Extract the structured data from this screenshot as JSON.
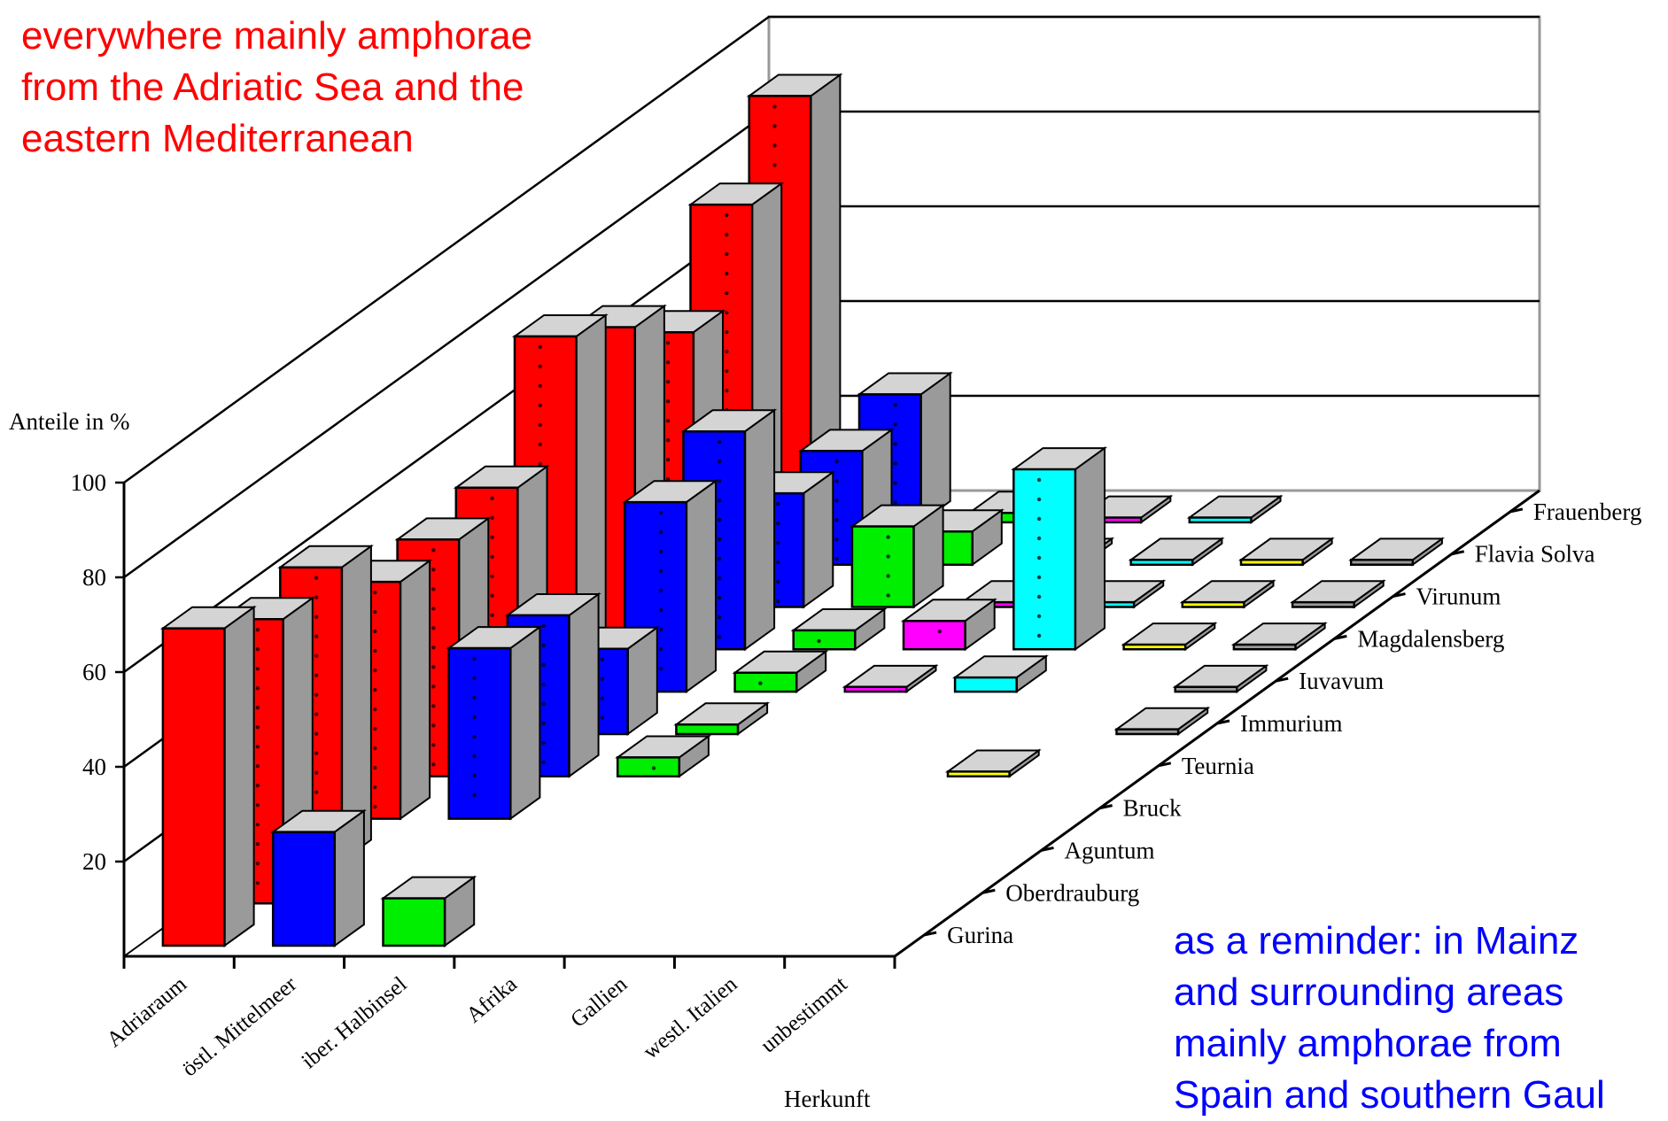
{
  "annotations": {
    "red_lines": [
      "everywhere mainly amphorae",
      "from the Adriatic Sea and the",
      "eastern Mediterranean"
    ],
    "red_color": "#ff0000",
    "blue_lines": [
      "as a reminder: in Mainz",
      "and surrounding areas",
      "mainly amphorae from",
      "Spain and southern Gaul"
    ],
    "blue_color": "#0000ff"
  },
  "chart_data": {
    "type": "bar",
    "subtype": "3d-grouped-bar",
    "title": "",
    "ylabel": "Anteile in %",
    "xlabel": "Herkunft",
    "ylim": [
      0,
      100
    ],
    "yticks": [
      20,
      40,
      60,
      80,
      100
    ],
    "grid": true,
    "categories": [
      "Adriaraum",
      "östl. Mittelmeer",
      "iber. Halbinsel",
      "Afrika",
      "Gallien",
      "westl. Italien",
      "unbestimmt"
    ],
    "category_colors": [
      "#ff0000",
      "#0000ff",
      "#00ee00",
      "#ff00ff",
      "#00ffff",
      "#ffff00",
      "#999999"
    ],
    "series": [
      {
        "name": "Gurina",
        "values": [
          67,
          24,
          10,
          0,
          0,
          0,
          0
        ]
      },
      {
        "name": "Oberdrauburg",
        "values": [
          60,
          0,
          0,
          0,
          0,
          0,
          0
        ]
      },
      {
        "name": "Aguntum",
        "values": [
          62,
          0,
          0,
          0,
          0,
          0,
          0
        ]
      },
      {
        "name": "Bruck",
        "values": [
          50,
          36,
          0,
          0,
          0,
          0,
          0
        ]
      },
      {
        "name": "Teurnia",
        "values": [
          50,
          34,
          4,
          0,
          0,
          1,
          0
        ]
      },
      {
        "name": "Immurium",
        "values": [
          52,
          18,
          2,
          0,
          0,
          0,
          1
        ]
      },
      {
        "name": "Iuvavum",
        "values": [
          75,
          40,
          4,
          1,
          3,
          0,
          1
        ]
      },
      {
        "name": "Magdalensberg",
        "values": [
          68,
          46,
          4,
          6,
          38,
          1,
          1
        ]
      },
      {
        "name": "Virunum",
        "values": [
          58,
          24,
          17,
          1,
          1,
          1,
          1
        ]
      },
      {
        "name": "Flavia Solva",
        "values": [
          76,
          24,
          7,
          1,
          1,
          1,
          1
        ]
      },
      {
        "name": "Frauenberg",
        "values": [
          90,
          27,
          2,
          1,
          1,
          0,
          0
        ]
      }
    ]
  }
}
